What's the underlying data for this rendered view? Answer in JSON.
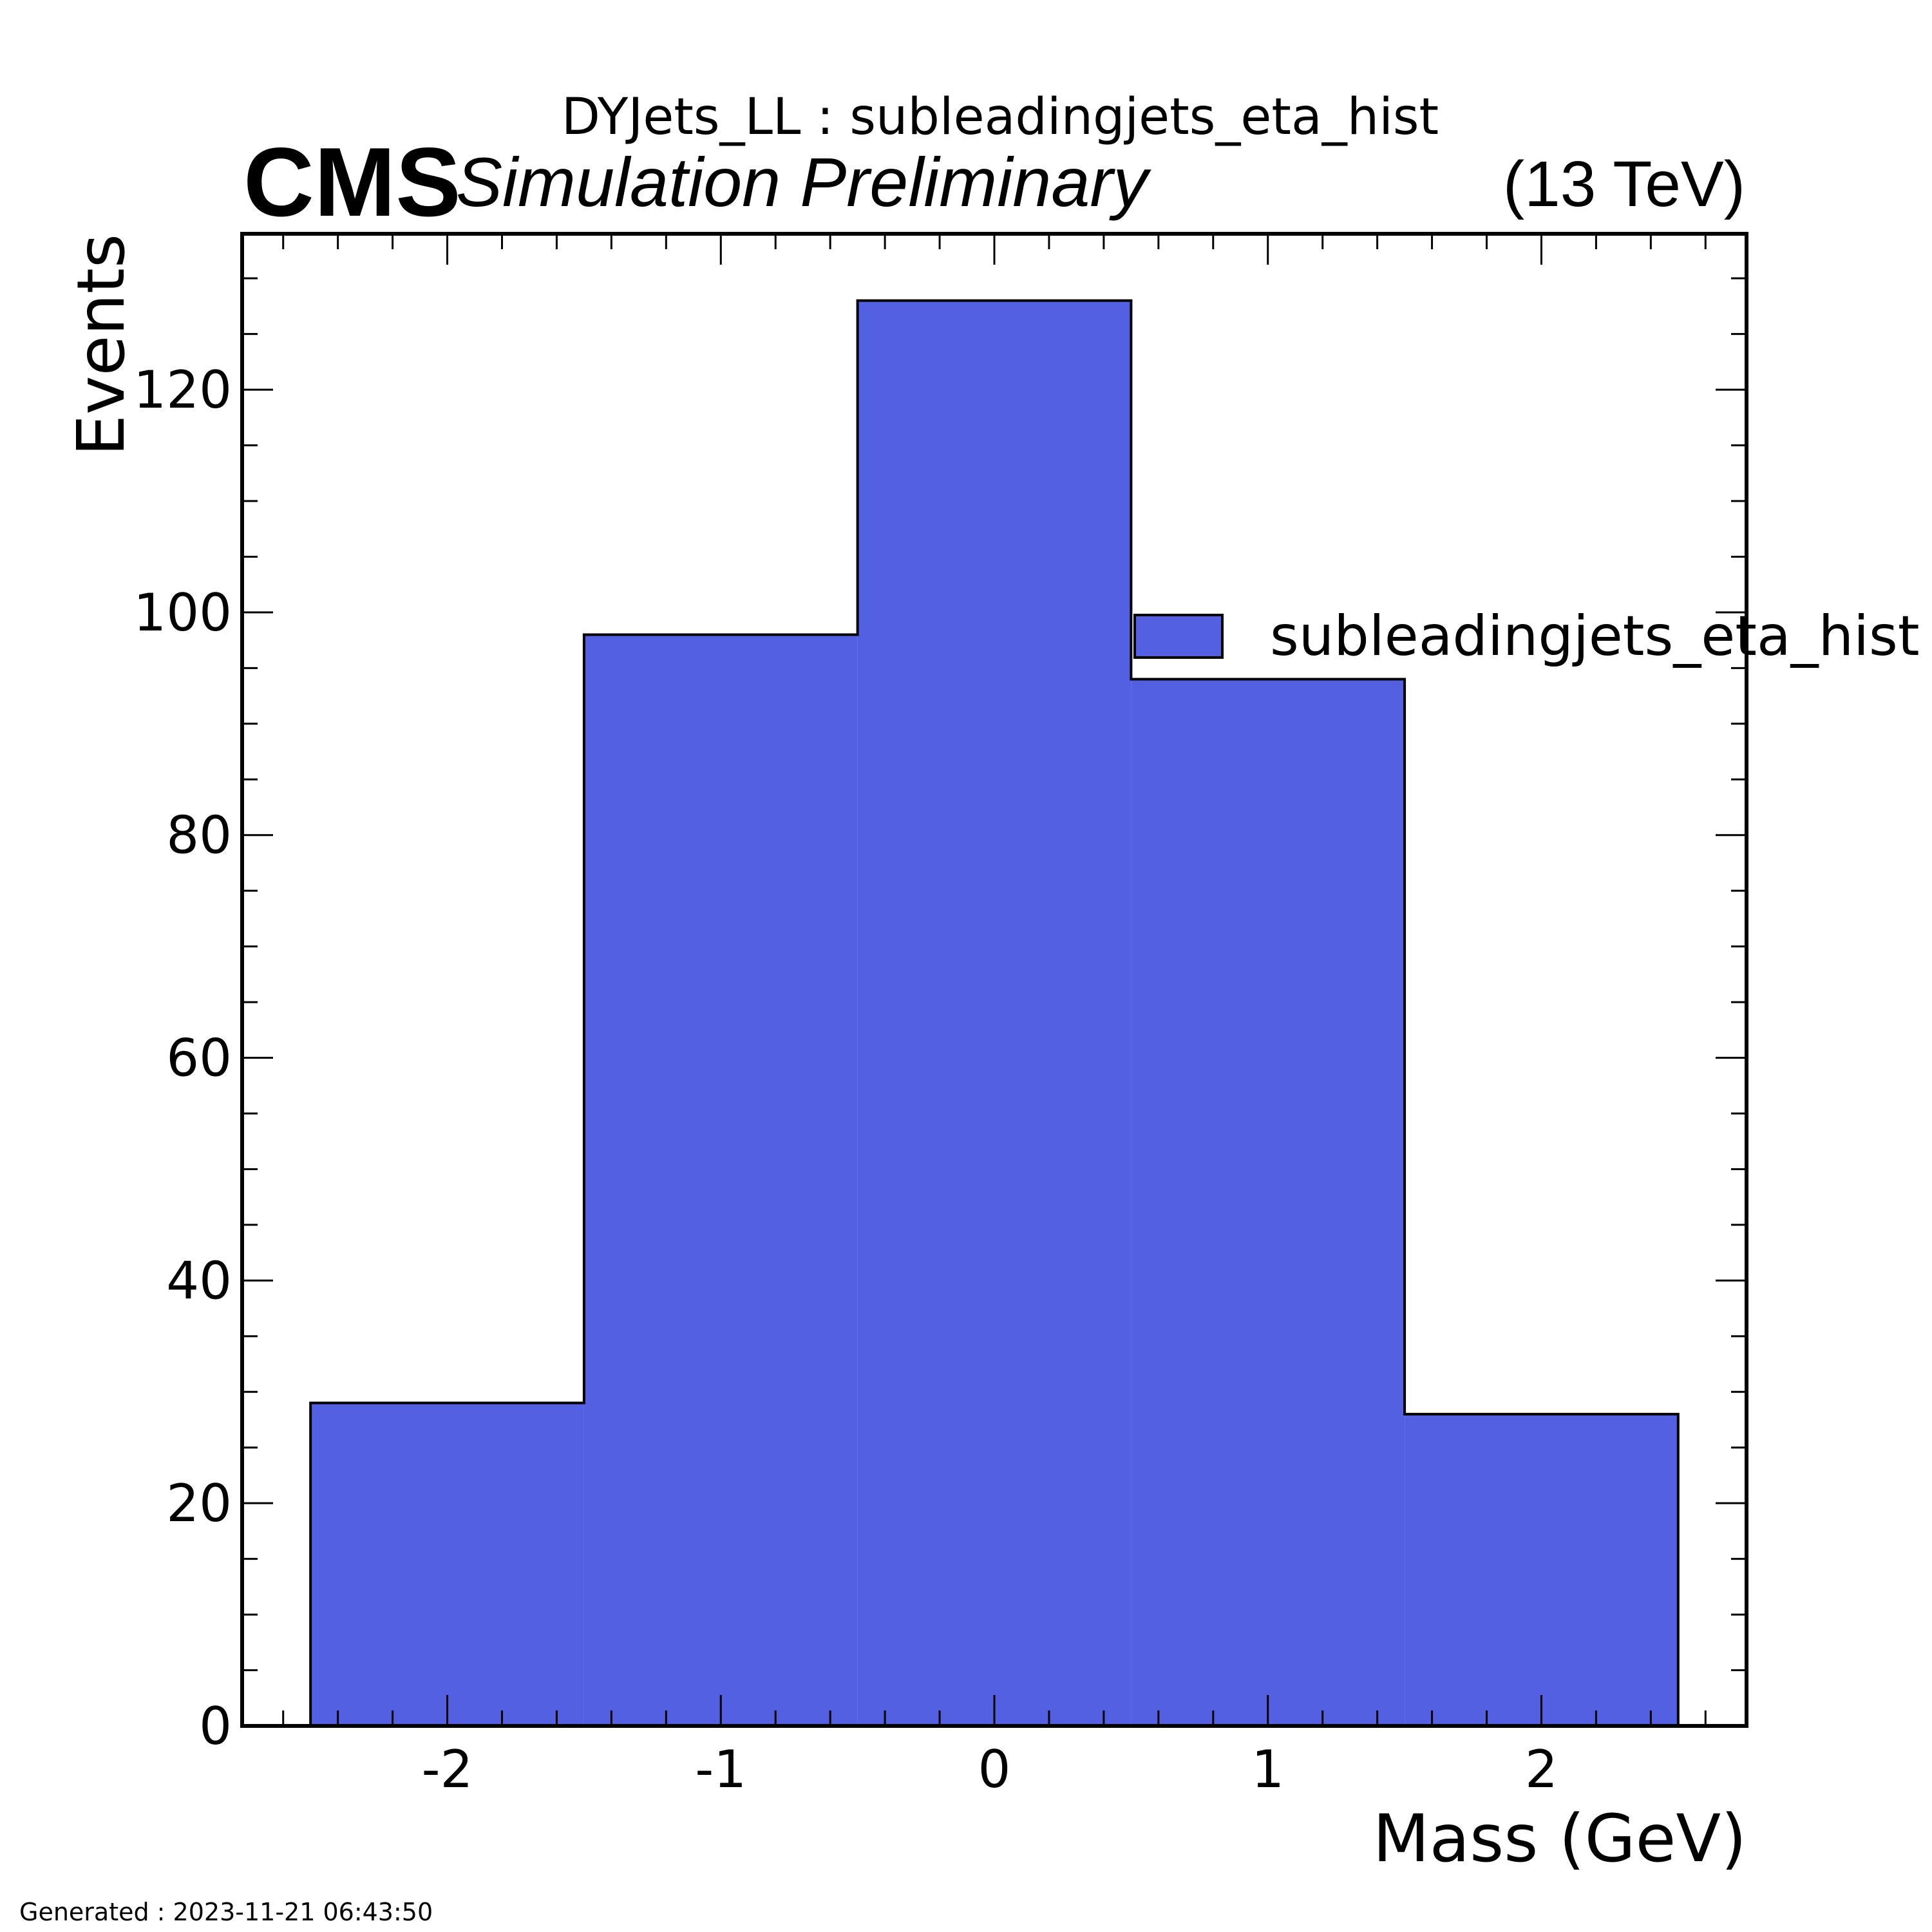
{
  "header": {
    "title": "DYJets_LL : subleadingjets_eta_hist",
    "experiment": "CMS",
    "label": "Simulation Preliminary",
    "energy": "(13 TeV)"
  },
  "footer": {
    "generated": "Generated : 2023-11-21 06:43:50"
  },
  "colors": {
    "fill": "#5260e1",
    "edge": "#000000"
  },
  "chart_data": {
    "type": "bar",
    "histogram": true,
    "bin_edges": [
      -2.5,
      -1.5,
      -0.5,
      0.5,
      1.5,
      2.5
    ],
    "values": [
      29,
      98,
      128,
      94,
      28
    ],
    "xlabel": "Mass (GeV)",
    "ylabel": "Events",
    "xlim": [
      -2.75,
      2.75
    ],
    "ylim": [
      0,
      134
    ],
    "xticks": [
      -2,
      -1,
      0,
      1,
      2
    ],
    "xtick_labels": [
      "-2",
      "-1",
      "0",
      "1",
      "2"
    ],
    "yticks": [
      0,
      20,
      40,
      60,
      80,
      100,
      120
    ],
    "ytick_labels": [
      "0",
      "20",
      "40",
      "60",
      "80",
      "100",
      "120"
    ],
    "legend": {
      "entries": [
        "subleadingjets_eta_hist"
      ],
      "position": "upper right"
    },
    "grid": false
  }
}
